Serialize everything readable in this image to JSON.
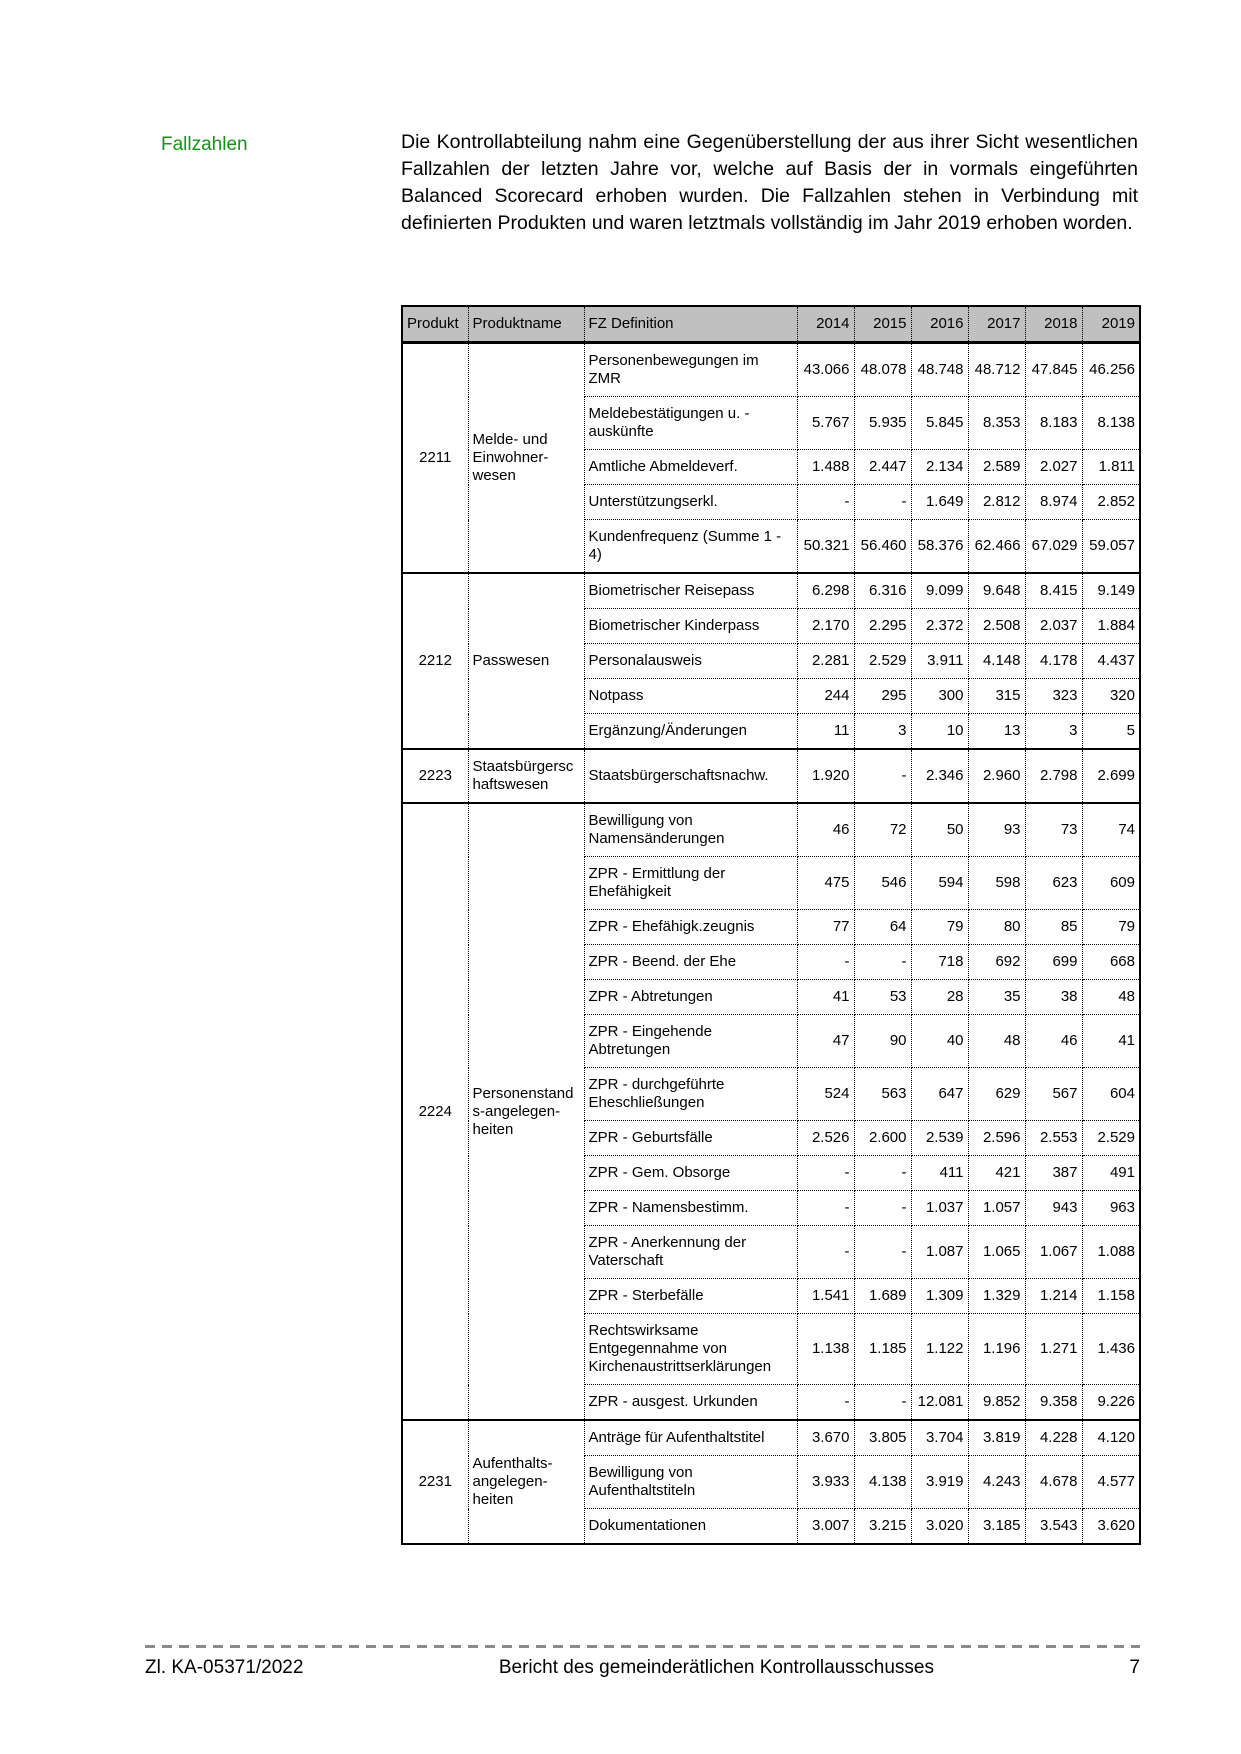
{
  "margin_label": "Fallzahlen",
  "intro_text": "Die Kontrollabteilung nahm eine Gegenüberstellung der aus ihrer Sicht wesentlichen Fallzahlen der letzten Jahre vor, welche auf Basis der in vormals eingeführten Balanced Scorecard erhoben wurden. Die Fallzahlen stehen in Verbindung mit definierten Produkten und waren letztmals vollständig im Jahr 2019 erhoben worden.",
  "colors": {
    "margin_label_green": "#149414",
    "table_header_bg": "#c0c0c0",
    "table_border": "#000000",
    "footer_divider_gray": "#8a8a8a"
  },
  "table": {
    "headers": [
      "Produkt",
      "Produktname",
      "FZ Definition",
      "2014",
      "2015",
      "2016",
      "2017",
      "2018",
      "2019"
    ],
    "groups": [
      {
        "produkt": "2211",
        "produktname": "Melde- und Einwohner-wesen",
        "rows": [
          {
            "definition": "Personenbewegungen im ZMR",
            "values": [
              "43.066",
              "48.078",
              "48.748",
              "48.712",
              "47.845",
              "46.256"
            ]
          },
          {
            "definition": "Meldebestätigungen u. -auskünfte",
            "values": [
              "5.767",
              "5.935",
              "5.845",
              "8.353",
              "8.183",
              "8.138"
            ]
          },
          {
            "definition": "Amtliche Abmeldeverf.",
            "values": [
              "1.488",
              "2.447",
              "2.134",
              "2.589",
              "2.027",
              "1.811"
            ]
          },
          {
            "definition": "Unterstützungserkl.",
            "values": [
              "-",
              "-",
              "1.649",
              "2.812",
              "8.974",
              "2.852"
            ]
          },
          {
            "definition": "Kundenfrequenz (Summe 1 - 4)",
            "values": [
              "50.321",
              "56.460",
              "58.376",
              "62.466",
              "67.029",
              "59.057"
            ]
          }
        ]
      },
      {
        "produkt": "2212",
        "produktname": "Passwesen",
        "rows": [
          {
            "definition": "Biometrischer Reisepass",
            "values": [
              "6.298",
              "6.316",
              "9.099",
              "9.648",
              "8.415",
              "9.149"
            ]
          },
          {
            "definition": "Biometrischer Kinderpass",
            "values": [
              "2.170",
              "2.295",
              "2.372",
              "2.508",
              "2.037",
              "1.884"
            ]
          },
          {
            "definition": "Personalausweis",
            "values": [
              "2.281",
              "2.529",
              "3.911",
              "4.148",
              "4.178",
              "4.437"
            ]
          },
          {
            "definition": "Notpass",
            "values": [
              "244",
              "295",
              "300",
              "315",
              "323",
              "320"
            ]
          },
          {
            "definition": "Ergänzung/Änderungen",
            "values": [
              "11",
              "3",
              "10",
              "13",
              "3",
              "5"
            ]
          }
        ]
      },
      {
        "produkt": "2223",
        "produktname": "Staatsbürgerschaftswesen",
        "rows": [
          {
            "definition": "Staatsbürgerschaftsnachw.",
            "values": [
              "1.920",
              "-",
              "2.346",
              "2.960",
              "2.798",
              "2.699"
            ]
          }
        ]
      },
      {
        "produkt": "2224",
        "produktname": "Personenstands-angelegen-heiten",
        "rows": [
          {
            "definition": "Bewilligung von Namensänderungen",
            "values": [
              "46",
              "72",
              "50",
              "93",
              "73",
              "74"
            ]
          },
          {
            "definition": "ZPR - Ermittlung der Ehefähigkeit",
            "values": [
              "475",
              "546",
              "594",
              "598",
              "623",
              "609"
            ]
          },
          {
            "definition": "ZPR - Ehefähigk.zeugnis",
            "values": [
              "77",
              "64",
              "79",
              "80",
              "85",
              "79"
            ]
          },
          {
            "definition": "ZPR - Beend. der Ehe",
            "values": [
              "-",
              "-",
              "718",
              "692",
              "699",
              "668"
            ]
          },
          {
            "definition": "ZPR - Abtretungen",
            "values": [
              "41",
              "53",
              "28",
              "35",
              "38",
              "48"
            ]
          },
          {
            "definition": "ZPR - Eingehende Abtretungen",
            "values": [
              "47",
              "90",
              "40",
              "48",
              "46",
              "41"
            ]
          },
          {
            "definition": "ZPR - durchgeführte Eheschließungen",
            "values": [
              "524",
              "563",
              "647",
              "629",
              "567",
              "604"
            ]
          },
          {
            "definition": "ZPR - Geburtsfälle",
            "values": [
              "2.526",
              "2.600",
              "2.539",
              "2.596",
              "2.553",
              "2.529"
            ]
          },
          {
            "definition": "ZPR - Gem. Obsorge",
            "values": [
              "-",
              "-",
              "411",
              "421",
              "387",
              "491"
            ]
          },
          {
            "definition": "ZPR - Namensbestimm.",
            "values": [
              "-",
              "-",
              "1.037",
              "1.057",
              "943",
              "963"
            ]
          },
          {
            "definition": "ZPR - Anerkennung der Vaterschaft",
            "values": [
              "-",
              "-",
              "1.087",
              "1.065",
              "1.067",
              "1.088"
            ]
          },
          {
            "definition": "ZPR - Sterbefälle",
            "values": [
              "1.541",
              "1.689",
              "1.309",
              "1.329",
              "1.214",
              "1.158"
            ]
          },
          {
            "definition": "Rechtswirksame Entgegennahme von Kirchenaustrittserklärungen",
            "values": [
              "1.138",
              "1.185",
              "1.122",
              "1.196",
              "1.271",
              "1.436"
            ]
          },
          {
            "definition": "ZPR - ausgest. Urkunden",
            "values": [
              "-",
              "-",
              "12.081",
              "9.852",
              "9.358",
              "9.226"
            ]
          }
        ]
      },
      {
        "produkt": "2231",
        "produktname": "Aufenthalts-angelegen-heiten",
        "rows": [
          {
            "definition": "Anträge für Aufenthaltstitel",
            "values": [
              "3.670",
              "3.805",
              "3.704",
              "3.819",
              "4.228",
              "4.120"
            ]
          },
          {
            "definition": "Bewilligung von Aufenthaltstiteln",
            "values": [
              "3.933",
              "4.138",
              "3.919",
              "4.243",
              "4.678",
              "4.577"
            ]
          },
          {
            "definition": "Dokumentationen",
            "values": [
              "3.007",
              "3.215",
              "3.020",
              "3.185",
              "3.543",
              "3.620"
            ]
          }
        ]
      }
    ]
  },
  "footer": {
    "left": "Zl. KA-05371/2022",
    "center": "Bericht des gemeinderätlichen Kontrollausschusses",
    "page_number": "7"
  }
}
